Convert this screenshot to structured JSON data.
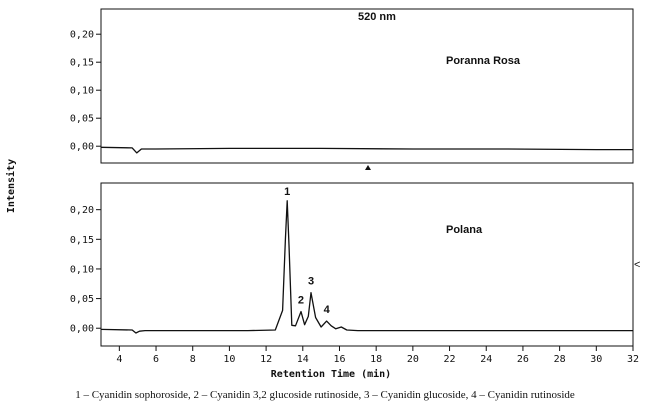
{
  "figure": {
    "ylabel": "Intensity",
    "xlabel": "Retention Time (min)",
    "caption": "1 – Cyanidin sophoroside, 2 – Cyanidin 3,2 glucoside rutinoside, 3 – Cyanidin glucoside, 4 – Cyanidin rutinoside"
  },
  "chart_data": [
    {
      "type": "line",
      "title": "520 nm",
      "series": [
        {
          "name": "Poranna Rosa",
          "x": [
            3,
            4.7,
            4.95,
            5.2,
            6,
            10,
            15,
            20,
            25,
            30,
            32
          ],
          "y": [
            -0.002,
            -0.003,
            -0.012,
            -0.005,
            -0.005,
            -0.004,
            -0.004,
            -0.005,
            -0.005,
            -0.006,
            -0.006
          ]
        }
      ],
      "xlim": [
        3,
        32
      ],
      "ylim": [
        -0.03,
        0.245
      ],
      "yticks": [
        "0,20",
        "0,15",
        "0,10",
        "0,05",
        "0,00"
      ],
      "xticks": [],
      "grid": false
    },
    {
      "type": "line",
      "title": "",
      "series": [
        {
          "name": "Polana",
          "x": [
            3,
            4.7,
            4.9,
            5.1,
            5.4,
            8,
            11,
            12.5,
            12.9,
            13.05,
            13.15,
            13.25,
            13.4,
            13.6,
            13.9,
            14.1,
            14.3,
            14.45,
            14.7,
            15.0,
            15.3,
            15.55,
            15.8,
            16.1,
            16.4,
            17,
            20,
            25,
            30,
            32
          ],
          "y": [
            -0.002,
            -0.003,
            -0.008,
            -0.005,
            -0.004,
            -0.004,
            -0.004,
            -0.003,
            0.03,
            0.15,
            0.215,
            0.14,
            0.005,
            0.004,
            0.028,
            0.006,
            0.02,
            0.06,
            0.018,
            0.002,
            0.012,
            0.004,
            -0.001,
            0.002,
            -0.003,
            -0.004,
            -0.004,
            -0.004,
            -0.004,
            -0.004
          ]
        }
      ],
      "peak_labels": [
        {
          "label": "1",
          "x": 13.15,
          "y": 0.215
        },
        {
          "label": "2",
          "x": 13.9,
          "y": 0.028
        },
        {
          "label": "3",
          "x": 14.45,
          "y": 0.06
        },
        {
          "label": "4",
          "x": 15.3,
          "y": 0.012
        }
      ],
      "xlim": [
        3,
        32
      ],
      "ylim": [
        -0.03,
        0.245
      ],
      "yticks": [
        "0,20",
        "0,15",
        "0,10",
        "0,05",
        "0,00"
      ],
      "xticks": [
        "4",
        "6",
        "8",
        "10",
        "12",
        "14",
        "16",
        "18",
        "20",
        "22",
        "24",
        "26",
        "28",
        "30",
        "32"
      ],
      "xlabel": "Retention Time (min)",
      "grid": false
    }
  ]
}
